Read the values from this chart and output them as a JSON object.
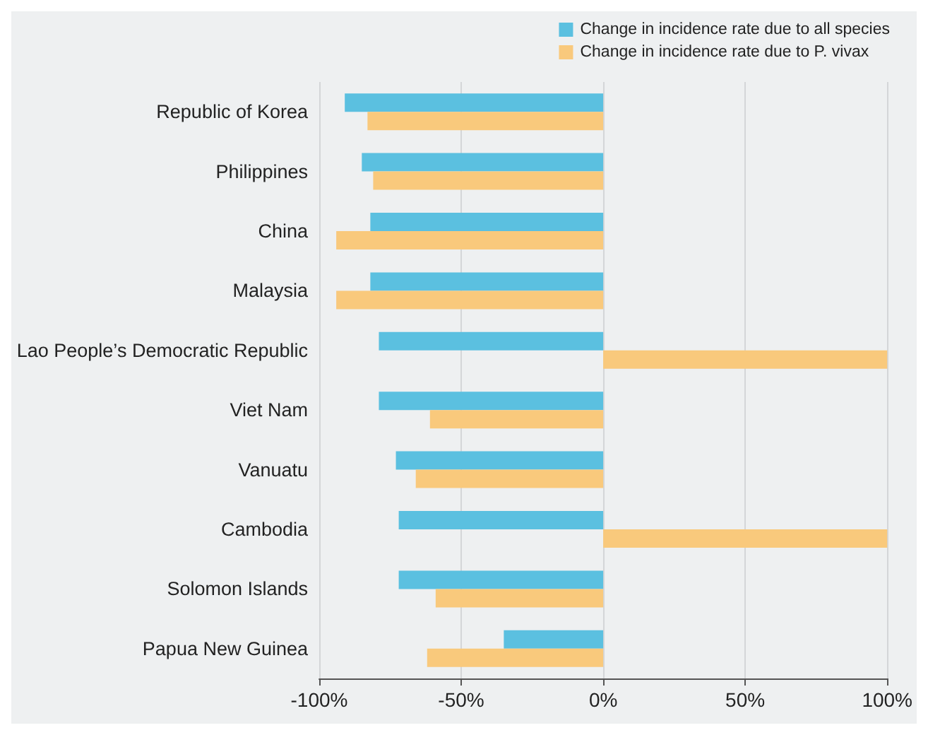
{
  "chart_data": {
    "type": "bar",
    "orientation": "horizontal",
    "categories": [
      "Republic of Korea",
      "Philippines",
      "China",
      "Malaysia",
      "Lao People’s Democratic Republic",
      "Viet Nam",
      "Vanuatu",
      "Cambodia",
      "Solomon Islands",
      "Papua New Guinea"
    ],
    "series": [
      {
        "name": "Change in incidence rate due to all species",
        "color": "#5bc0e0",
        "values": [
          -91,
          -85,
          -82,
          -82,
          -79,
          -79,
          -73,
          -72,
          -72,
          -35
        ]
      },
      {
        "name": "Change in incidence rate due to P. vivax",
        "color": "#f9c97c",
        "values": [
          -83,
          -81,
          -94,
          -94,
          100,
          -61,
          -66,
          100,
          -59,
          -62
        ]
      }
    ],
    "xlim": [
      -100,
      100
    ],
    "xticks": [
      {
        "value": -100,
        "label": "-100%"
      },
      {
        "value": -50,
        "label": "-50%"
      },
      {
        "value": 0,
        "label": "0%"
      },
      {
        "value": 50,
        "label": "50%"
      },
      {
        "value": 100,
        "label": "100%"
      }
    ],
    "grid": "x",
    "legend": "top right"
  }
}
